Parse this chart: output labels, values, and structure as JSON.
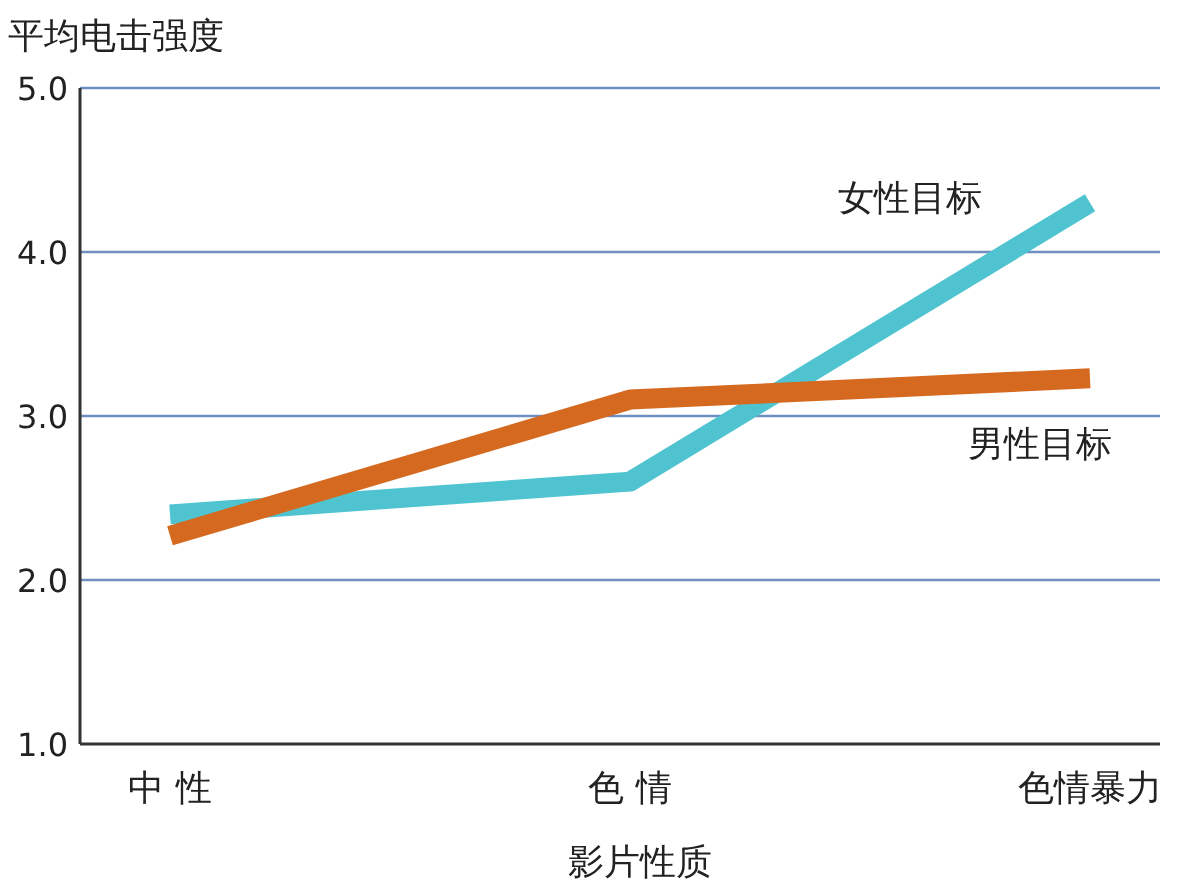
{
  "chart_data": {
    "type": "line",
    "ylabel": "平均电击强度",
    "xlabel": "影片性质",
    "categories": [
      "中 性",
      "色 情",
      "色情暴力"
    ],
    "series": [
      {
        "name": "女性目标",
        "color": "#4fc4d0",
        "values": [
          2.4,
          2.6,
          4.3
        ]
      },
      {
        "name": "男性目标",
        "color": "#d4691f",
        "values": [
          2.27,
          3.1,
          3.23
        ]
      }
    ],
    "ylim": [
      1.0,
      5.0
    ],
    "yticks": [
      {
        "value": 1,
        "label": "1.0"
      },
      {
        "value": 2,
        "label": "2.0"
      },
      {
        "value": 3,
        "label": "3.0"
      },
      {
        "value": 4,
        "label": "4.0"
      },
      {
        "value": 5,
        "label": "5.0"
      }
    ],
    "grid": "y",
    "marker": "none",
    "line_style": "solid"
  }
}
